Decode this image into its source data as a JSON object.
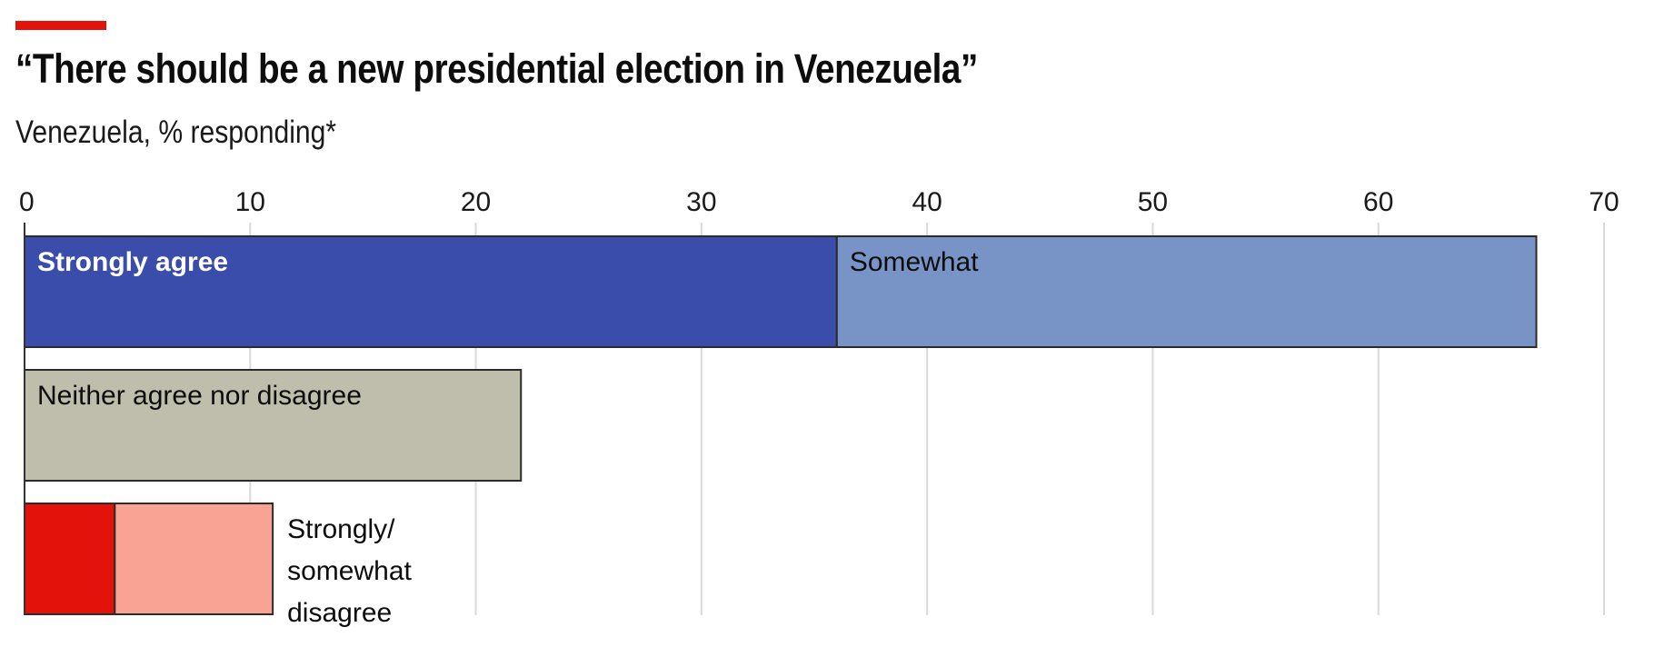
{
  "header": {
    "accent_color": "#e3120b",
    "title": "“There should be a new presidential election in Venezuela”",
    "subtitle": "Venezuela, % responding*"
  },
  "chart_data": {
    "type": "bar",
    "orientation": "horizontal",
    "stacked": true,
    "title": "“There should be a new presidential election in Venezuela”",
    "subtitle": "Venezuela, % responding*",
    "xlabel": "",
    "ylabel": "",
    "xlim": [
      0,
      70
    ],
    "xticks": [
      0,
      10,
      20,
      30,
      40,
      50,
      60,
      70
    ],
    "grid": true,
    "legend": "none (labels placed inside/next to bars)",
    "categories": [
      "Agree",
      "Neither agree nor disagree",
      "Disagree"
    ],
    "bars": [
      {
        "category": "Agree",
        "segments": [
          {
            "name": "Strongly agree",
            "value": 36,
            "color": "#3a4daa",
            "label": "Strongly agree",
            "label_color": "#ffffff",
            "label_weight": "bold"
          },
          {
            "name": "Somewhat agree",
            "value": 31,
            "color": "#7893c6",
            "label": "Somewhat",
            "label_color": "#0d0d0d",
            "label_weight": "normal"
          }
        ]
      },
      {
        "category": "Neither agree nor disagree",
        "segments": [
          {
            "name": "Neither agree nor disagree",
            "value": 22,
            "color": "#bfbdab",
            "label": "Neither agree nor disagree",
            "label_color": "#0d0d0d",
            "label_weight": "normal"
          }
        ]
      },
      {
        "category": "Disagree",
        "segments": [
          {
            "name": "Strongly disagree",
            "value": 4,
            "color": "#e3120b",
            "label": "",
            "label_color": "#0d0d0d",
            "label_weight": "normal"
          },
          {
            "name": "Somewhat disagree",
            "value": 7,
            "color": "#f9a395",
            "label": "",
            "label_color": "#0d0d0d",
            "label_weight": "normal"
          }
        ],
        "outside_label": [
          "Strongly/",
          "somewhat",
          "disagree"
        ]
      }
    ],
    "colors": {
      "gridline": "#d9d9d9",
      "axis": "#333333",
      "bar_outline": "#2b2b2b"
    }
  }
}
